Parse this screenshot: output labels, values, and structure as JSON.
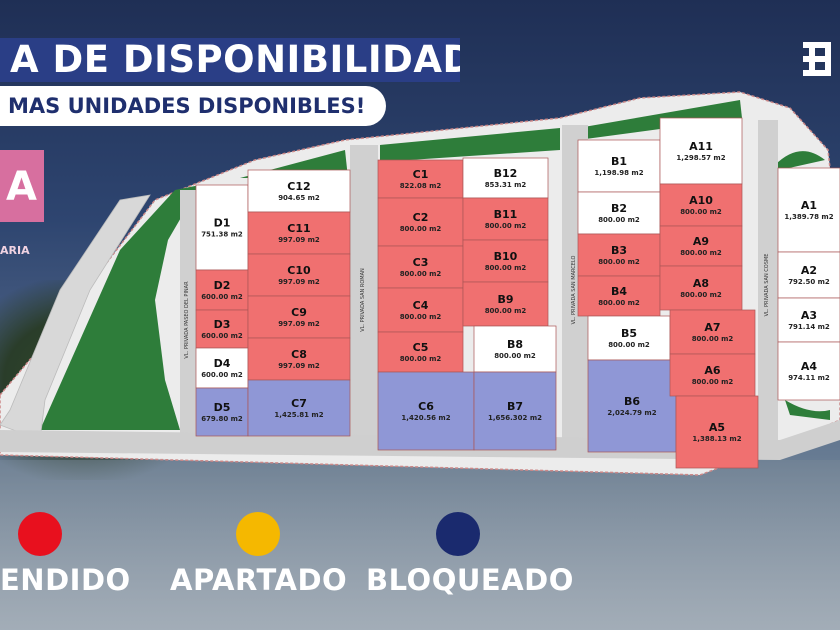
{
  "header": {
    "title": "A DE DISPONIBILIDAD",
    "subtitle": "MAS UNIDADES DISPONIBLES!",
    "logo_letter": "A",
    "logo_caption": "ARIA"
  },
  "colors": {
    "vendido": "#f07070",
    "apartado": "#f5b800",
    "bloqueado": "#8f97d6",
    "disponible": "#ffffff",
    "green_area": "#2e7d3a"
  },
  "legend": [
    {
      "label": "ENDIDO",
      "color": "#e8101e"
    },
    {
      "label": "APARTADO",
      "color": "#f5b800"
    },
    {
      "label": "BLOQUEADO",
      "color": "#1a2a6e"
    }
  ],
  "streets": [
    "VL. PRIVADA PASEO DEL PINAR",
    "VL. PRIVADA SAN ROMAN",
    "VL. PRIVADA SAN MARCELO",
    "VL. PRIVADA SAN COSME"
  ],
  "lots": [
    {
      "id": "D1",
      "area": "751.38 m2",
      "status": "disponible"
    },
    {
      "id": "D2",
      "area": "600.00 m2",
      "status": "vendido"
    },
    {
      "id": "D3",
      "area": "600.00 m2",
      "status": "vendido"
    },
    {
      "id": "D4",
      "area": "600.00 m2",
      "status": "disponible"
    },
    {
      "id": "D5",
      "area": "679.80 m2",
      "status": "bloqueado"
    },
    {
      "id": "C12",
      "area": "904.65 m2",
      "status": "disponible"
    },
    {
      "id": "C11",
      "area": "997.09 m2",
      "status": "vendido"
    },
    {
      "id": "C10",
      "area": "997.09 m2",
      "status": "vendido"
    },
    {
      "id": "C9",
      "area": "997.09 m2",
      "status": "vendido"
    },
    {
      "id": "C8",
      "area": "997.09 m2",
      "status": "vendido"
    },
    {
      "id": "C7",
      "area": "1,425.81 m2",
      "status": "bloqueado"
    },
    {
      "id": "C1",
      "area": "822.08 m2",
      "status": "vendido"
    },
    {
      "id": "C2",
      "area": "800.00 m2",
      "status": "vendido"
    },
    {
      "id": "C3",
      "area": "800.00 m2",
      "status": "vendido"
    },
    {
      "id": "C4",
      "area": "800.00 m2",
      "status": "vendido"
    },
    {
      "id": "C5",
      "area": "800.00 m2",
      "status": "vendido"
    },
    {
      "id": "C6",
      "area": "1,420.56 m2",
      "status": "bloqueado"
    },
    {
      "id": "B12",
      "area": "853.31 m2",
      "status": "disponible"
    },
    {
      "id": "B11",
      "area": "800.00 m2",
      "status": "vendido"
    },
    {
      "id": "B10",
      "area": "800.00 m2",
      "status": "vendido"
    },
    {
      "id": "B9",
      "area": "800.00 m2",
      "status": "vendido"
    },
    {
      "id": "B8",
      "area": "800.00 m2",
      "status": "disponible"
    },
    {
      "id": "B7",
      "area": "1,656.302 m2",
      "status": "bloqueado"
    },
    {
      "id": "B1",
      "area": "1,198.98 m2",
      "status": "disponible"
    },
    {
      "id": "B2",
      "area": "800.00 m2",
      "status": "disponible"
    },
    {
      "id": "B3",
      "area": "800.00 m2",
      "status": "vendido"
    },
    {
      "id": "B4",
      "area": "800.00 m2",
      "status": "vendido"
    },
    {
      "id": "B5",
      "area": "800.00 m2",
      "status": "disponible"
    },
    {
      "id": "B6",
      "area": "2,024.79 m2",
      "status": "bloqueado"
    },
    {
      "id": "A11",
      "area": "1,298.57 m2",
      "status": "disponible"
    },
    {
      "id": "A10",
      "area": "800.00 m2",
      "status": "vendido"
    },
    {
      "id": "A9",
      "area": "800.00 m2",
      "status": "vendido"
    },
    {
      "id": "A8",
      "area": "800.00 m2",
      "status": "vendido"
    },
    {
      "id": "A7",
      "area": "800.00 m2",
      "status": "vendido"
    },
    {
      "id": "A6",
      "area": "800.00 m2",
      "status": "vendido"
    },
    {
      "id": "A5",
      "area": "1,388.13 m2",
      "status": "vendido"
    },
    {
      "id": "A1",
      "area": "1,389.78 m2",
      "status": "disponible"
    },
    {
      "id": "A2",
      "area": "792.50 m2",
      "status": "disponible"
    },
    {
      "id": "A3",
      "area": "791.14 m2",
      "status": "disponible"
    },
    {
      "id": "A4",
      "area": "974.11 m2",
      "status": "disponible"
    }
  ]
}
